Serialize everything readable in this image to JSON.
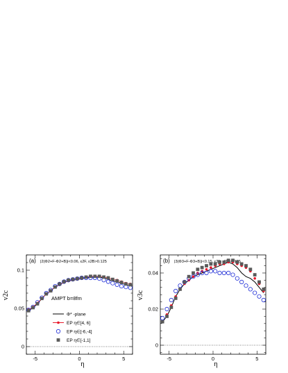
{
  "chart_data": [
    {
      "type": "line",
      "panel_label": "(a)",
      "cut_label": "|2(Φ2+F-Φ2+B)|<0.06, ε2F, ε2B>0.125",
      "annotation": "AMPT b=8fm",
      "xlabel": "η",
      "ylabel": "v2c",
      "xlim": [
        -6,
        6
      ],
      "ylim": [
        -0.01,
        0.12
      ],
      "xticks": [
        -5,
        0,
        5
      ],
      "yticks": [
        0,
        0.05,
        0.1
      ],
      "ytick_labels": [
        "0",
        "0.05",
        "0.1"
      ],
      "zero_line": true,
      "legend_placement": "lower-center",
      "series": [
        {
          "name": "Φ* -plane",
          "style": "line",
          "color": "#000000",
          "x": [
            -5.75,
            -5.25,
            -4.75,
            -4.25,
            -3.75,
            -3.25,
            -2.75,
            -2.25,
            -1.75,
            -1.25,
            -0.75,
            -0.25,
            0.25,
            0.75,
            1.25,
            1.75,
            2.25,
            2.75,
            3.25,
            3.75,
            4.25,
            4.75,
            5.25,
            5.75
          ],
          "y": [
            0.047,
            0.051,
            0.056,
            0.063,
            0.069,
            0.073,
            0.078,
            0.081,
            0.084,
            0.086,
            0.087,
            0.088,
            0.089,
            0.09,
            0.091,
            0.091,
            0.091,
            0.09,
            0.088,
            0.086,
            0.085,
            0.083,
            0.081,
            0.08
          ]
        },
        {
          "name": "EP η∈[4, 6]",
          "style": "marker-line",
          "marker": "filled-circle",
          "color": "#e8182a",
          "x": [
            -5.75,
            -5.25,
            -4.75,
            -4.25,
            -3.75,
            -3.25,
            -2.75,
            -2.25,
            -1.75,
            -1.25,
            -0.75,
            -0.25,
            0.25,
            0.75,
            1.25,
            1.75,
            2.25,
            2.75,
            3.25,
            3.75,
            4.25,
            4.75,
            5.25,
            5.75
          ],
          "y": [
            0.048,
            0.052,
            0.057,
            0.063,
            0.069,
            0.073,
            0.078,
            0.081,
            0.084,
            0.086,
            0.087,
            0.088,
            0.089,
            0.091,
            0.092,
            0.092,
            0.092,
            0.091,
            0.09,
            0.088,
            0.087,
            0.085,
            0.083,
            0.082
          ]
        },
        {
          "name": "EP η∈[-6,-4]",
          "style": "marker",
          "marker": "open-circle",
          "color": "#1c2bd6",
          "x": [
            -5.75,
            -5.25,
            -4.75,
            -4.25,
            -3.75,
            -3.25,
            -2.75,
            -2.25,
            -1.75,
            -1.25,
            -0.75,
            -0.25,
            0.25,
            0.75,
            1.25,
            1.75,
            2.25,
            2.75,
            3.25,
            3.75,
            4.25,
            4.75,
            5.25,
            5.75
          ],
          "y": [
            0.048,
            0.052,
            0.058,
            0.064,
            0.07,
            0.074,
            0.079,
            0.082,
            0.085,
            0.087,
            0.088,
            0.089,
            0.09,
            0.09,
            0.09,
            0.09,
            0.089,
            0.087,
            0.085,
            0.083,
            0.081,
            0.079,
            0.078,
            0.077
          ]
        },
        {
          "name": "EP η∈[-1,1]",
          "style": "marker",
          "marker": "filled-square",
          "color": "#5a5a5a",
          "x": [
            -5.75,
            -5.25,
            -4.75,
            -4.25,
            -3.75,
            -3.25,
            -2.75,
            -2.25,
            -1.75,
            -1.25,
            -0.75,
            -0.25,
            0.25,
            0.75,
            1.25,
            1.75,
            2.25,
            2.75,
            3.25,
            3.75,
            4.25,
            4.75,
            5.25,
            5.75
          ],
          "y": [
            0.047,
            0.051,
            0.056,
            0.063,
            0.069,
            0.073,
            0.078,
            0.082,
            0.085,
            0.087,
            0.088,
            0.089,
            0.09,
            0.091,
            0.092,
            0.092,
            0.092,
            0.091,
            0.09,
            0.088,
            0.086,
            0.084,
            0.082,
            0.081
          ]
        }
      ]
    },
    {
      "type": "line",
      "panel_label": "(b)",
      "cut_label": "|3(Φ3+F-Φ3+B)|<0.15, ε3F, ε3B>0.125",
      "xlabel": "η",
      "ylabel": "v3c",
      "xlim": [
        -6,
        6
      ],
      "ylim": [
        -0.005,
        0.05
      ],
      "xticks": [
        -5,
        0,
        5
      ],
      "yticks": [
        0,
        0.02,
        0.04
      ],
      "ytick_labels": [
        "0",
        "0.02",
        "0.04"
      ],
      "zero_line": true,
      "series": [
        {
          "name": "Φ* -plane",
          "style": "line",
          "color": "#000000",
          "x": [
            -5.75,
            -5.25,
            -4.75,
            -4.25,
            -3.75,
            -3.25,
            -2.75,
            -2.25,
            -1.75,
            -1.25,
            -0.75,
            -0.25,
            0.25,
            0.75,
            1.25,
            1.75,
            2.25,
            2.75,
            3.25,
            3.75,
            4.25,
            4.75,
            5.25,
            5.75
          ],
          "y": [
            0.013,
            0.016,
            0.021,
            0.027,
            0.031,
            0.034,
            0.036,
            0.038,
            0.039,
            0.04,
            0.041,
            0.042,
            0.043,
            0.044,
            0.045,
            0.046,
            0.045,
            0.043,
            0.04,
            0.038,
            0.037,
            0.035,
            0.032,
            0.029
          ]
        },
        {
          "name": "EP η∈[4, 6]",
          "style": "marker",
          "marker": "filled-circle",
          "color": "#e8182a",
          "x": [
            -5.75,
            -5.25,
            -4.75,
            -4.25,
            -3.75,
            -3.25,
            -2.75,
            -2.25,
            -1.75,
            -1.25,
            -0.75,
            -0.25,
            0.25,
            0.75,
            1.25,
            1.75,
            2.25,
            2.75,
            3.25,
            3.75,
            4.25,
            4.75,
            5.25,
            5.75
          ],
          "y": [
            0.013,
            0.017,
            0.022,
            0.027,
            0.031,
            0.034,
            0.036,
            0.038,
            0.04,
            0.041,
            0.042,
            0.043,
            0.044,
            0.045,
            0.045,
            0.046,
            0.046,
            0.045,
            0.044,
            0.043,
            0.041,
            0.037,
            0.034,
            0.03
          ]
        },
        {
          "name": "EP η∈[-6,-4]",
          "style": "marker",
          "marker": "open-circle",
          "color": "#1c2bd6",
          "x": [
            -5.75,
            -5.25,
            -4.75,
            -4.25,
            -3.75,
            -3.25,
            -2.75,
            -2.25,
            -1.75,
            -1.25,
            -0.75,
            -0.25,
            0.25,
            0.75,
            1.25,
            1.75,
            2.25,
            2.75,
            3.25,
            3.75,
            4.25,
            4.75,
            5.25,
            5.75
          ],
          "y": [
            0.015,
            0.02,
            0.025,
            0.03,
            0.033,
            0.035,
            0.037,
            0.038,
            0.039,
            0.04,
            0.04,
            0.041,
            0.041,
            0.04,
            0.04,
            0.04,
            0.039,
            0.037,
            0.035,
            0.033,
            0.031,
            0.029,
            0.027,
            0.025
          ]
        },
        {
          "name": "EP η∈[-1,1]",
          "style": "marker",
          "marker": "filled-square",
          "color": "#5a5a5a",
          "x": [
            -5.75,
            -5.25,
            -4.75,
            -4.25,
            -3.75,
            -3.25,
            -2.75,
            -2.25,
            -1.75,
            -1.25,
            -0.75,
            -0.25,
            0.25,
            0.75,
            1.25,
            1.75,
            2.25,
            2.75,
            3.25,
            3.75,
            4.25,
            4.75,
            5.25,
            5.75
          ],
          "y": [
            0.013,
            0.016,
            0.021,
            0.026,
            0.031,
            0.035,
            0.038,
            0.04,
            0.042,
            0.043,
            0.044,
            0.045,
            0.045,
            0.046,
            0.046,
            0.047,
            0.047,
            0.046,
            0.045,
            0.044,
            0.042,
            0.039,
            0.035,
            0.031
          ]
        }
      ]
    }
  ]
}
